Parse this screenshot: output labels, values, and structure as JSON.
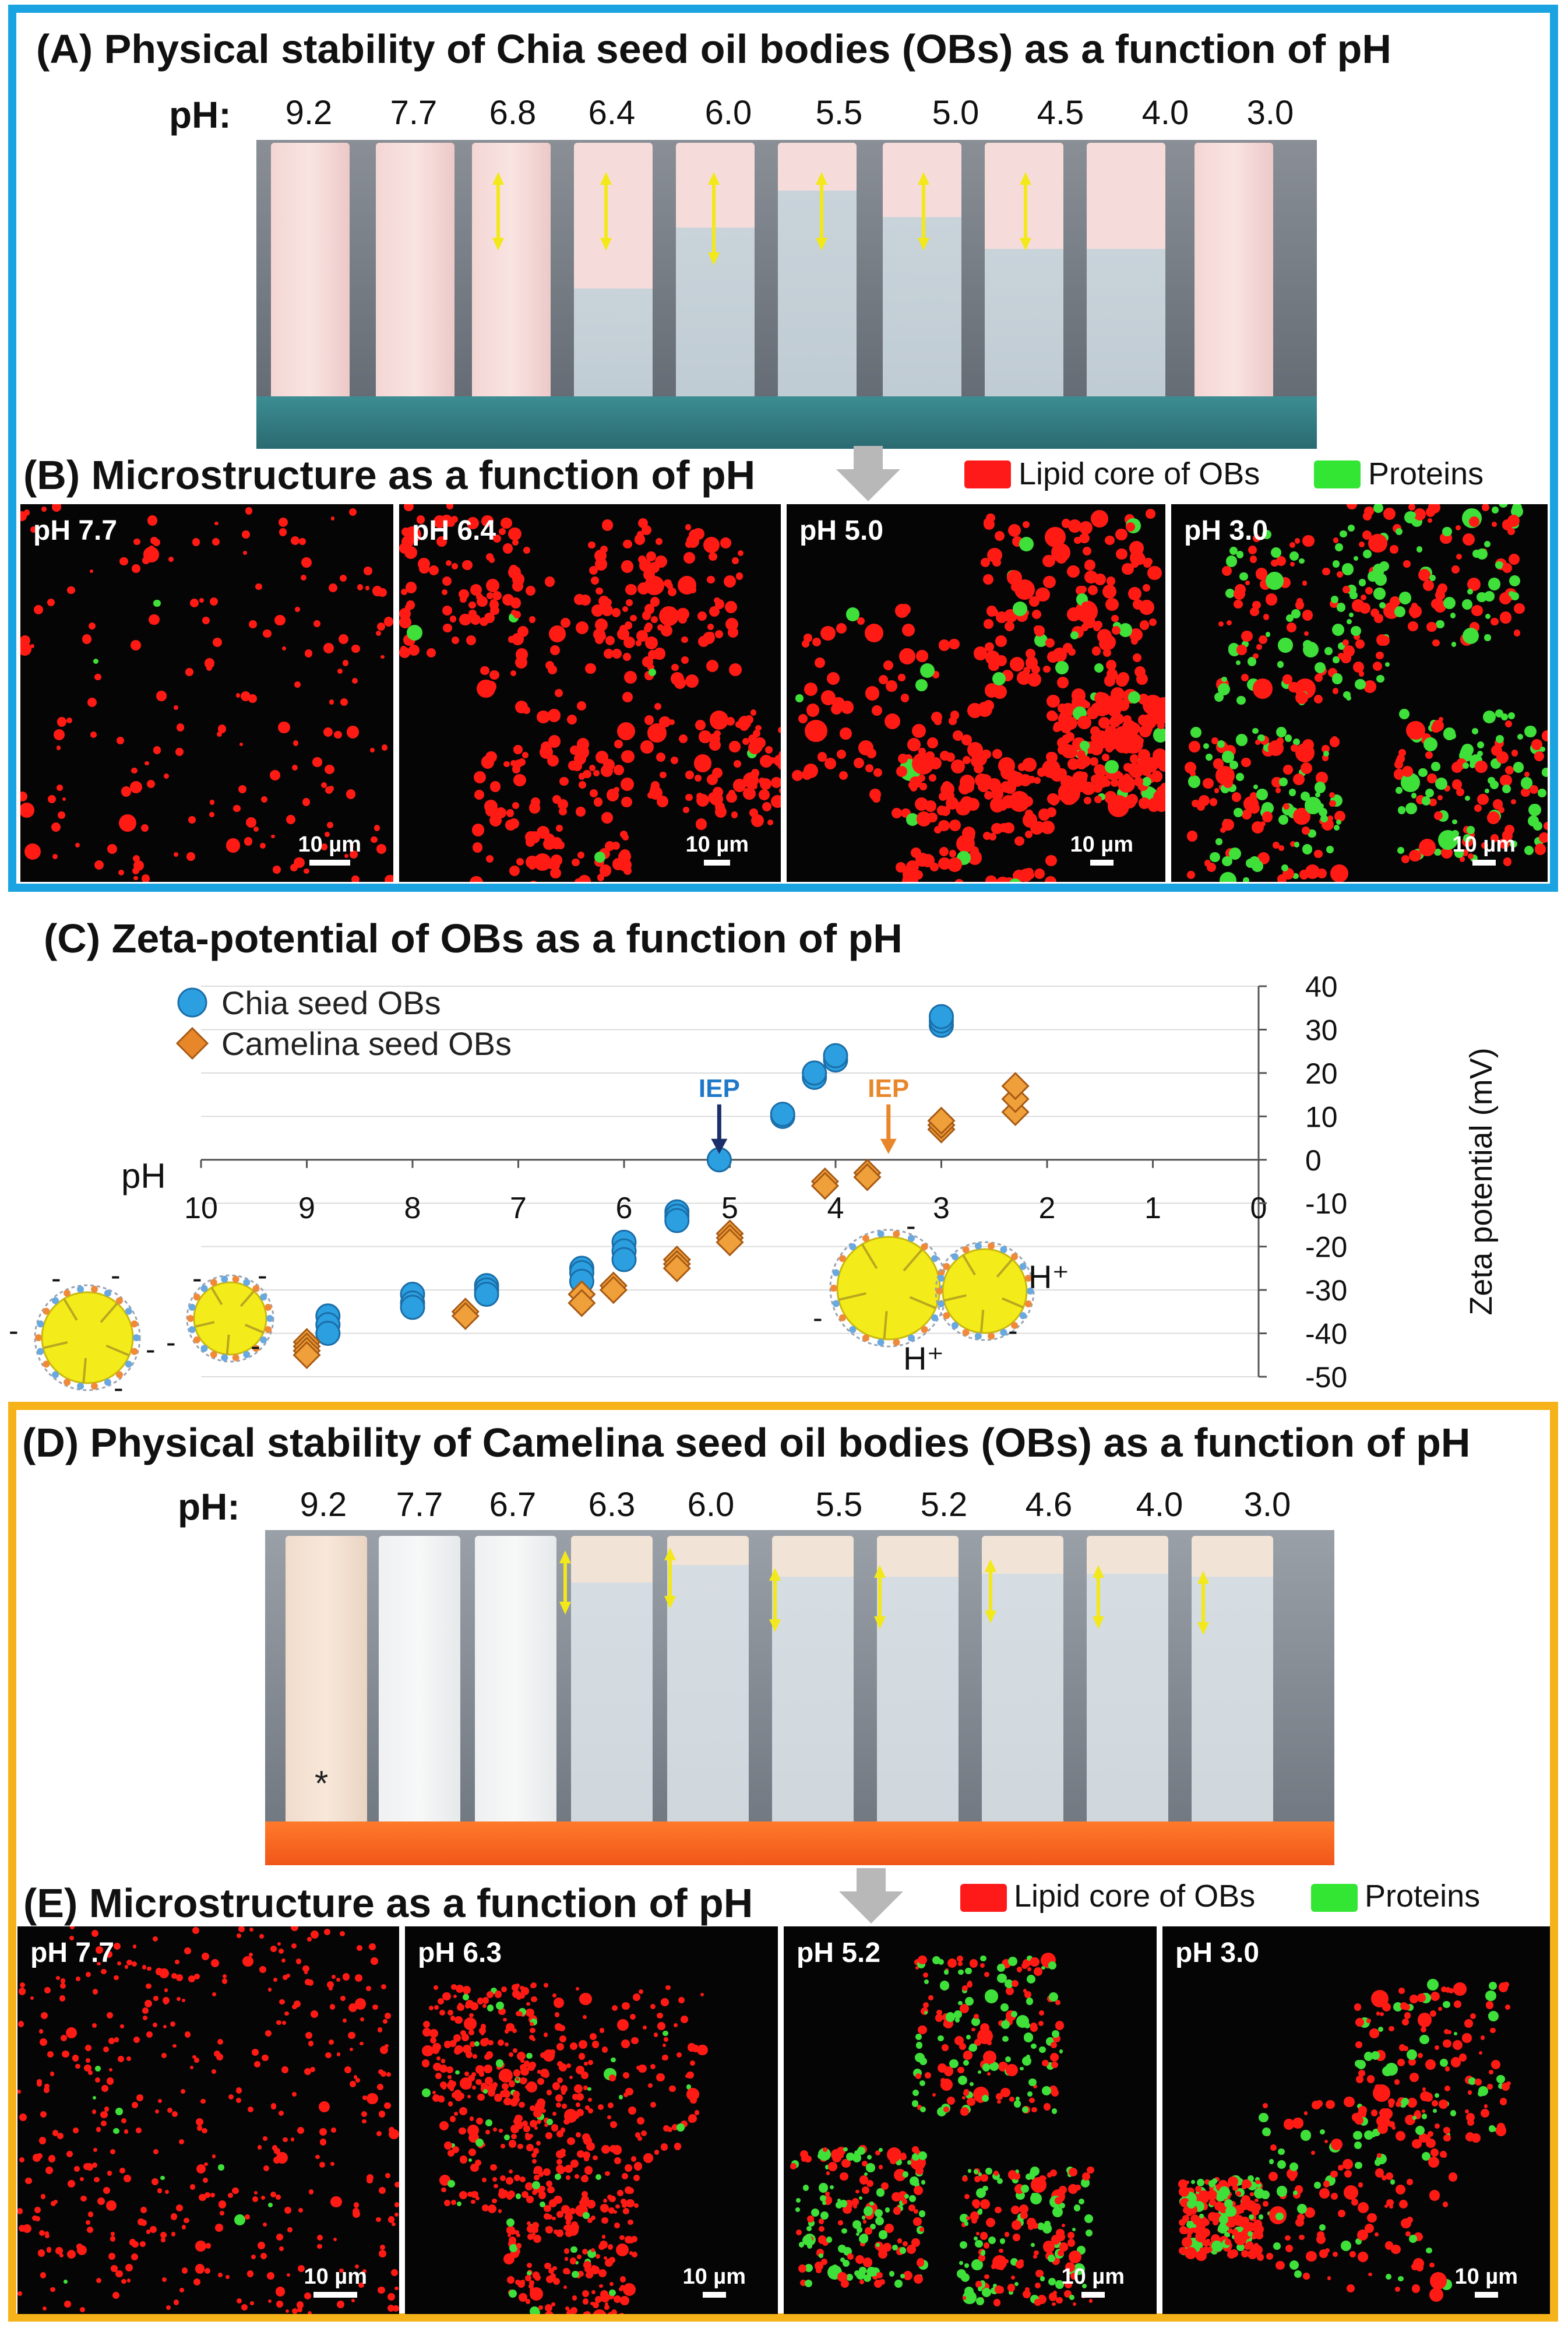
{
  "panel_a": {
    "title": "(A) Physical stability of Chia seed oil bodies (OBs) as a function of pH",
    "ph_label": "pH:",
    "ph_values": [
      "9.2",
      "7.7",
      "6.8",
      "6.4",
      "6.0",
      "5.5",
      "5.0",
      "4.5",
      "4.0",
      "3.0"
    ]
  },
  "panel_b": {
    "title": "(B) Microstructure as a function of pH",
    "legend": {
      "lipid": "Lipid core of OBs",
      "proteins": "Proteins"
    },
    "images": [
      {
        "label": "pH 7.7",
        "scale": "10 µm"
      },
      {
        "label": "pH 6.4",
        "scale": "10 µm"
      },
      {
        "label": "pH 5.0",
        "scale": "10 µm"
      },
      {
        "label": "pH 3.0",
        "scale": "10 µm"
      }
    ]
  },
  "panel_c": {
    "title": "(C) Zeta-potential of OBs as a function of pH",
    "annotations": {
      "iep": "IEP",
      "h_plus": "H⁺",
      "minus": "-"
    }
  },
  "panel_d": {
    "title": "(D) Physical stability of Camelina seed oil bodies (OBs) as a function of pH",
    "ph_label": "pH:",
    "ph_values": [
      "9.2",
      "7.7",
      "6.7",
      "6.3",
      "6.0",
      "5.5",
      "5.2",
      "4.6",
      "4.0",
      "3.0"
    ],
    "asterisk": "*"
  },
  "panel_e": {
    "title": "(E) Microstructure as a function of pH",
    "legend": {
      "lipid": "Lipid core of OBs",
      "proteins": "Proteins"
    },
    "images": [
      {
        "label": "pH 7.7",
        "scale": "10 µm"
      },
      {
        "label": "pH 6.3",
        "scale": "10 µm"
      },
      {
        "label": "pH 5.2",
        "scale": "10 µm"
      },
      {
        "label": "pH 3.0",
        "scale": "10 µm"
      }
    ]
  },
  "colors": {
    "chia": "#2b9fe0",
    "camelina": "#e8862a",
    "iep_chia_label": "#1f78c8",
    "iep_chia_arrow": "#1c2f6b",
    "iep_camelina": "#e8862a",
    "frame_a": "#1aa3e0",
    "frame_d": "#f5b319",
    "lipid": "#ff1a1a",
    "protein": "#33e633"
  },
  "chart_data": {
    "type": "scatter",
    "title": "(C) Zeta-potential of OBs as a function of pH",
    "xlabel": "pH",
    "ylabel": "Zeta potential (mV)",
    "xlim": [
      10,
      0
    ],
    "ylim": [
      -50,
      40
    ],
    "x_ticks": [
      "10",
      "9",
      "8",
      "7",
      "6",
      "5",
      "4",
      "3",
      "2",
      "1",
      "0"
    ],
    "y_ticks": [
      "40",
      "30",
      "20",
      "10",
      "0",
      "-10",
      "-20",
      "-30",
      "-40",
      "-50"
    ],
    "gridlines": true,
    "legend_position": "top-left",
    "series": [
      {
        "name": "Chia seed OBs",
        "marker": "circle",
        "points": [
          [
            8.8,
            -36
          ],
          [
            8.8,
            -38
          ],
          [
            8.8,
            -40
          ],
          [
            8.0,
            -31
          ],
          [
            8.0,
            -33
          ],
          [
            8.0,
            -34
          ],
          [
            7.3,
            -29
          ],
          [
            7.3,
            -30
          ],
          [
            7.3,
            -31
          ],
          [
            6.4,
            -25
          ],
          [
            6.4,
            -26
          ],
          [
            6.4,
            -28
          ],
          [
            6.0,
            -19
          ],
          [
            6.0,
            -21
          ],
          [
            6.0,
            -23
          ],
          [
            5.5,
            -12
          ],
          [
            5.5,
            -13
          ],
          [
            5.5,
            -14
          ],
          [
            5.1,
            0
          ],
          [
            5.1,
            0
          ],
          [
            4.5,
            10
          ],
          [
            4.5,
            10.5
          ],
          [
            4.2,
            19
          ],
          [
            4.2,
            20
          ],
          [
            4.0,
            23
          ],
          [
            4.0,
            24
          ],
          [
            3.0,
            31
          ],
          [
            3.0,
            32
          ],
          [
            3.0,
            33
          ]
        ]
      },
      {
        "name": "Camelina seed OBs",
        "marker": "diamond",
        "points": [
          [
            9.0,
            -42
          ],
          [
            9.0,
            -43
          ],
          [
            9.0,
            -44
          ],
          [
            9.0,
            -45
          ],
          [
            7.5,
            -35
          ],
          [
            7.5,
            -36
          ],
          [
            6.4,
            -31
          ],
          [
            6.4,
            -33
          ],
          [
            6.1,
            -29
          ],
          [
            6.1,
            -30
          ],
          [
            5.5,
            -23
          ],
          [
            5.5,
            -24
          ],
          [
            5.5,
            -25
          ],
          [
            5.0,
            -17
          ],
          [
            5.0,
            -18
          ],
          [
            5.0,
            -19
          ],
          [
            4.1,
            -5
          ],
          [
            4.1,
            -6
          ],
          [
            3.7,
            -3
          ],
          [
            3.7,
            -4
          ],
          [
            3.0,
            7
          ],
          [
            3.0,
            8
          ],
          [
            3.0,
            9
          ],
          [
            2.3,
            11
          ],
          [
            2.3,
            14
          ],
          [
            2.3,
            17
          ]
        ]
      }
    ],
    "annotations": [
      {
        "text": "IEP",
        "series": "Chia seed OBs",
        "x": 5.1,
        "y": 0
      },
      {
        "text": "IEP",
        "series": "Camelina seed OBs",
        "x": 3.5,
        "y": 0
      }
    ]
  }
}
